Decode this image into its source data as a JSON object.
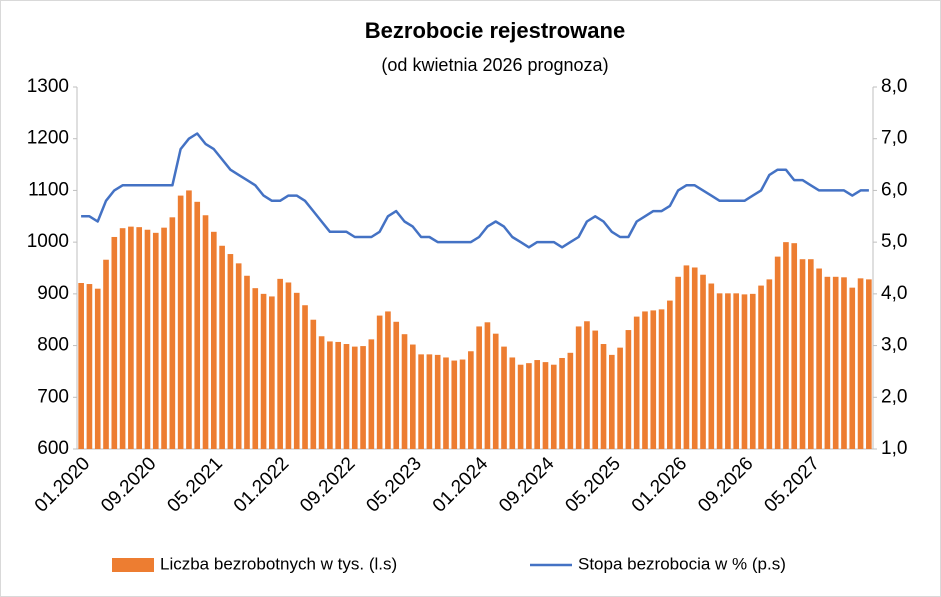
{
  "chart_data": {
    "type": "bar-line",
    "title": "Bezrobocie rejestrowane",
    "subtitle": "(od kwietnia 2026 prognoza)",
    "categories": [
      "01.2020",
      null,
      null,
      null,
      null,
      null,
      null,
      null,
      "09.2020",
      null,
      null,
      null,
      null,
      null,
      null,
      null,
      "05.2021",
      null,
      null,
      null,
      null,
      null,
      null,
      null,
      "01.2022",
      null,
      null,
      null,
      null,
      null,
      null,
      null,
      "09.2022",
      null,
      null,
      null,
      null,
      null,
      null,
      null,
      "05.2023",
      null,
      null,
      null,
      null,
      null,
      null,
      null,
      "01.2024",
      null,
      null,
      null,
      null,
      null,
      null,
      null,
      "09.2024",
      null,
      null,
      null,
      null,
      null,
      null,
      null,
      "05.2025",
      null,
      null,
      null,
      null,
      null,
      null,
      null,
      "01.2026",
      null,
      null,
      null,
      null,
      null,
      null,
      null,
      "09.2026",
      null,
      null,
      null,
      null,
      null,
      null,
      null,
      "05.2027",
      null,
      null,
      null,
      null,
      null,
      null,
      null
    ],
    "series": [
      {
        "name": "Liczba bezrobotnych w tys. (l.s)",
        "type": "bar",
        "color": "#ED7D31",
        "axis": "y",
        "values": [
          921,
          919,
          910,
          966,
          1010,
          1027,
          1030,
          1029,
          1024,
          1018,
          1028,
          1048,
          1090,
          1100,
          1078,
          1052,
          1020,
          993,
          977,
          959,
          935,
          911,
          900,
          895,
          929,
          922,
          902,
          878,
          850,
          818,
          808,
          807,
          803,
          798,
          799,
          812,
          858,
          866,
          846,
          822,
          802,
          783,
          783,
          782,
          777,
          771,
          773,
          789,
          837,
          845,
          823,
          798,
          777,
          763,
          766,
          772,
          768,
          763,
          776,
          786,
          837,
          847,
          829,
          803,
          782,
          796,
          830,
          856,
          866,
          868,
          870,
          887,
          933,
          955,
          951,
          937,
          920,
          901,
          901,
          901,
          899,
          900,
          916,
          928,
          972,
          1000,
          998,
          967,
          967,
          949,
          933,
          933,
          932,
          912,
          930,
          928
        ]
      },
      {
        "name": "Stopa bezrobocia w % (p.s)",
        "type": "line",
        "color": "#4472C4",
        "axis": "y2",
        "values": [
          5.5,
          5.5,
          5.4,
          5.8,
          6.0,
          6.1,
          6.1,
          6.1,
          6.1,
          6.1,
          6.1,
          6.1,
          6.8,
          7.0,
          7.1,
          6.9,
          6.8,
          6.6,
          6.4,
          6.3,
          6.2,
          6.1,
          5.9,
          5.8,
          5.8,
          5.9,
          5.9,
          5.8,
          5.6,
          5.4,
          5.2,
          5.2,
          5.2,
          5.1,
          5.1,
          5.1,
          5.2,
          5.5,
          5.6,
          5.4,
          5.3,
          5.1,
          5.1,
          5.0,
          5.0,
          5.0,
          5.0,
          5.0,
          5.1,
          5.3,
          5.4,
          5.3,
          5.1,
          5.0,
          4.9,
          5.0,
          5.0,
          5.0,
          4.9,
          5.0,
          5.1,
          5.4,
          5.5,
          5.4,
          5.2,
          5.1,
          5.1,
          5.4,
          5.5,
          5.6,
          5.6,
          5.7,
          6.0,
          6.1,
          6.1,
          6.0,
          5.9,
          5.8,
          5.8,
          5.8,
          5.8,
          5.9,
          6.0,
          6.3,
          6.4,
          6.4,
          6.2,
          6.2,
          6.1,
          6.0,
          6.0,
          6.0,
          6.0,
          5.9,
          6.0,
          6.0
        ]
      }
    ],
    "ylim": [
      600,
      1300
    ],
    "yticks": [
      600,
      700,
      800,
      900,
      1000,
      1100,
      1200,
      1300
    ],
    "y2lim": [
      1,
      8
    ],
    "y2ticks": [
      {
        "value": 1,
        "label": "1,0"
      },
      {
        "value": 2,
        "label": "2,0"
      },
      {
        "value": 3,
        "label": "3,0"
      },
      {
        "value": 4,
        "label": "4,0"
      },
      {
        "value": 5,
        "label": "5,0"
      },
      {
        "value": 6,
        "label": "6,0"
      },
      {
        "value": 7,
        "label": "7,0"
      },
      {
        "value": 8,
        "label": "8,0"
      }
    ],
    "legend": "bottom"
  }
}
